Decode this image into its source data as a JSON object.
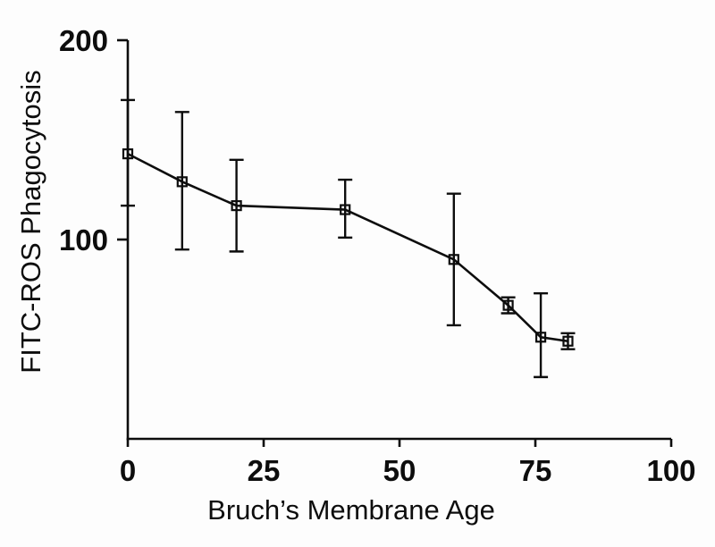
{
  "figure": {
    "background": "#fdfdfd",
    "ink_color": "#0d0d0d"
  },
  "chart_data": {
    "type": "line",
    "title": "",
    "xlabel": "Bruch’s Membrane Age",
    "ylabel": "FITC-ROS Phagocytosis",
    "xlim": [
      0,
      100
    ],
    "ylim": [
      0,
      200
    ],
    "x_ticks": [
      0,
      25,
      50,
      75,
      100
    ],
    "y_ticks": [
      100,
      200
    ],
    "grid": false,
    "legend": "none",
    "marker": "open-square",
    "error_bars": true,
    "series": [
      {
        "name": "FITC-ROS phagocytosis",
        "x": [
          0,
          10,
          20,
          40,
          60,
          70,
          76,
          81
        ],
        "y": [
          143,
          129,
          117,
          115,
          90,
          67,
          51,
          49
        ],
        "err_up": [
          27,
          35,
          23,
          15,
          33,
          4,
          22,
          4
        ],
        "err_down": [
          26,
          34,
          23,
          14,
          33,
          4,
          20,
          4
        ]
      }
    ]
  }
}
